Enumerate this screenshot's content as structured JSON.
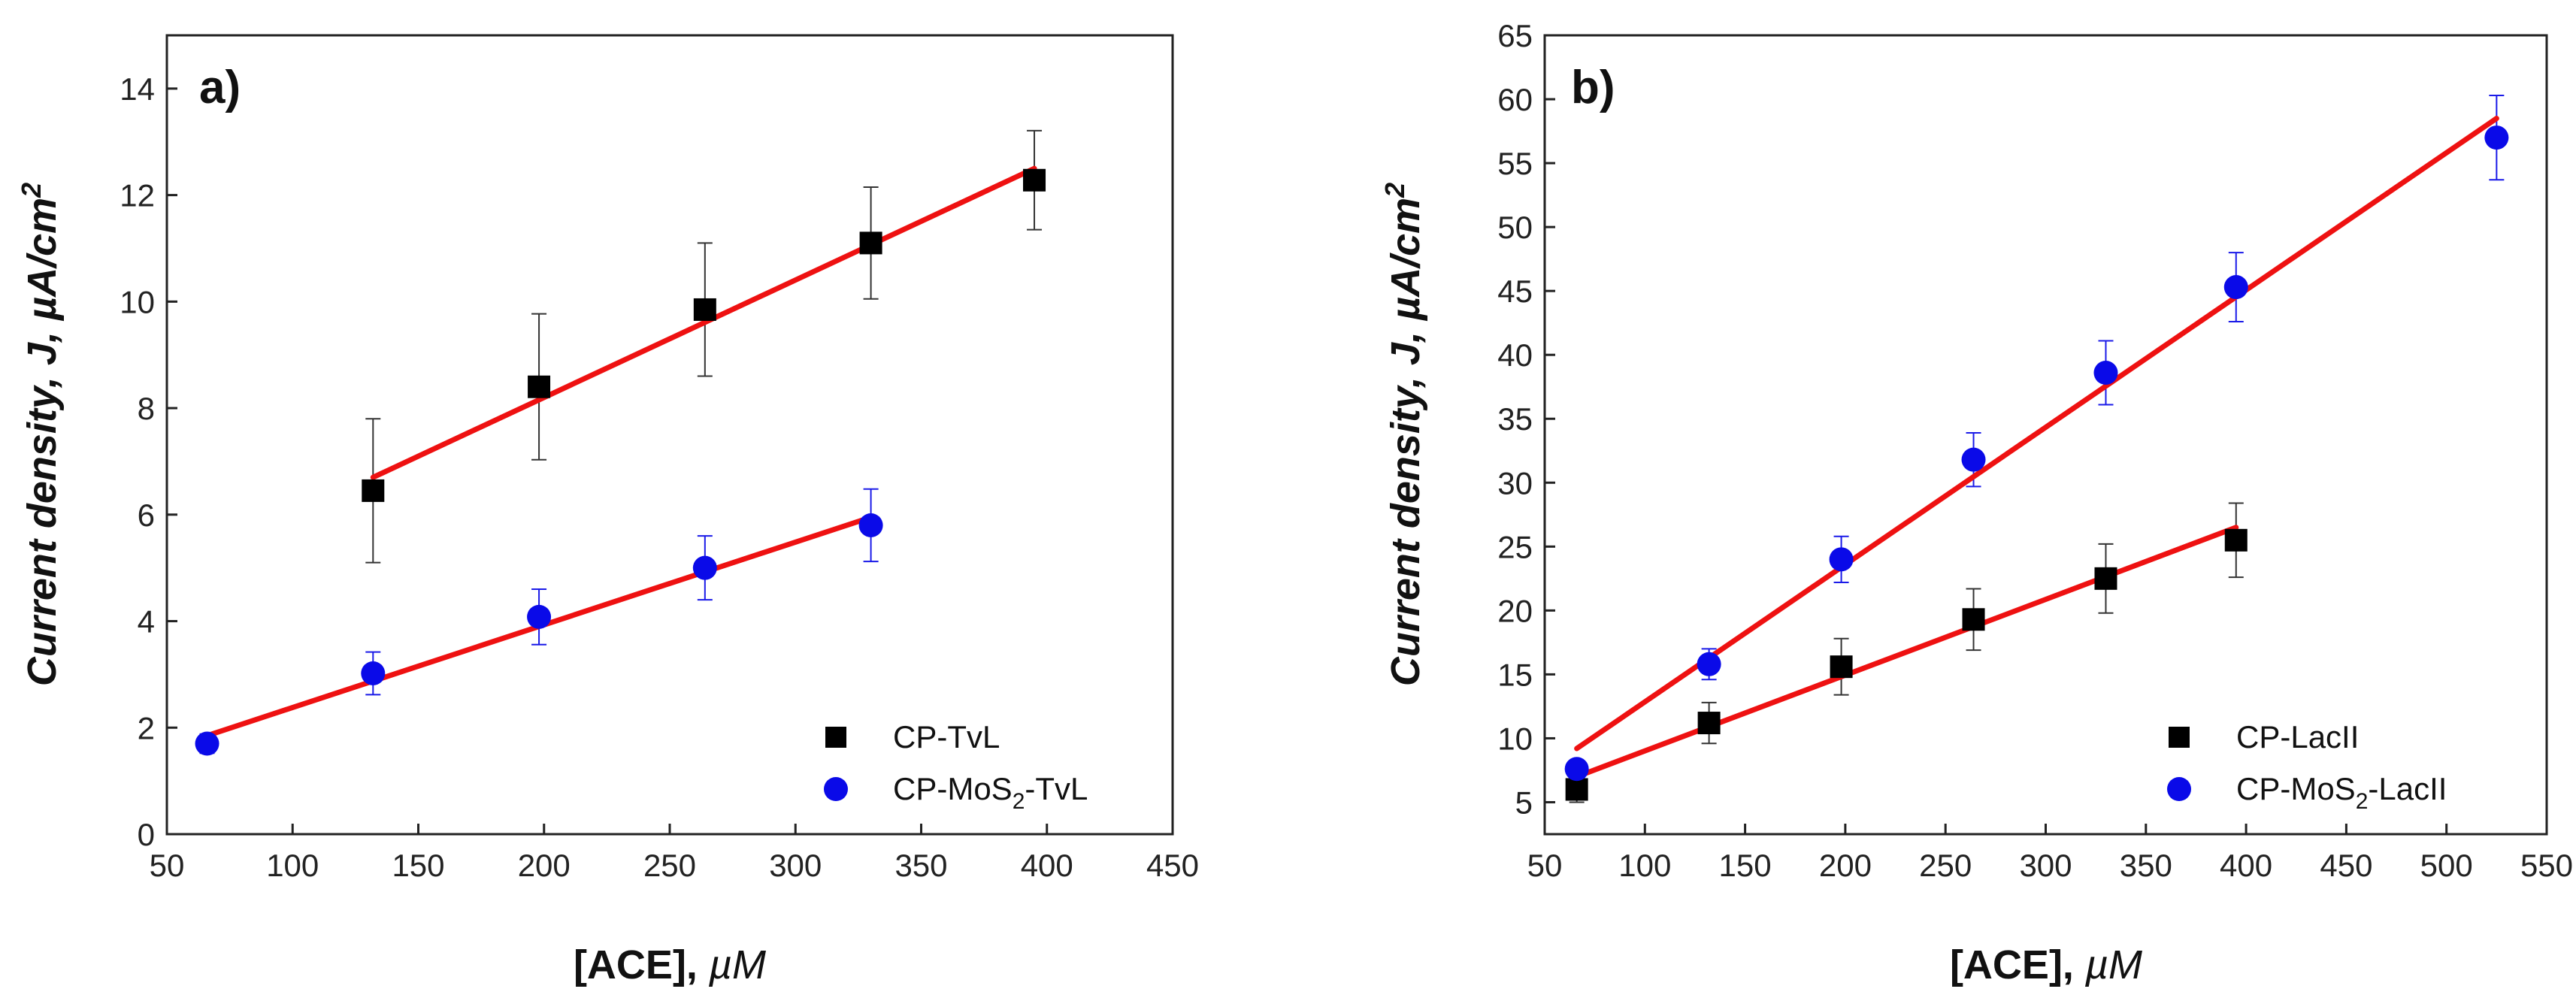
{
  "chart_data": [
    {
      "type": "scatter",
      "panel_label": "a)",
      "xlabel_main": "[ACE], ",
      "xlabel_unit": "µM",
      "ylabel_main": "Current density, J, ",
      "ylabel_unit": "µA/cm",
      "ylabel_sup": "2",
      "xlim": [
        50,
        450
      ],
      "ylim": [
        0,
        15
      ],
      "xticks": [
        50,
        100,
        150,
        200,
        250,
        300,
        350,
        400,
        450
      ],
      "yticks": [
        0,
        2,
        4,
        6,
        8,
        10,
        12,
        14
      ],
      "legend_position": "bottom-right",
      "series": [
        {
          "name_main": "CP-TvL",
          "name_sub": "",
          "name_tail": "",
          "marker": "square",
          "color": "#000000",
          "err_color": "#333333",
          "x": [
            132,
            198,
            264,
            330,
            395
          ],
          "y": [
            6.45,
            8.4,
            9.85,
            11.1,
            12.28
          ],
          "err": [
            1.35,
            1.37,
            1.25,
            1.05,
            0.93
          ],
          "fit": {
            "x": [
              132,
              395
            ],
            "y": [
              6.7,
              12.5
            ],
            "color": "#ee1111"
          }
        },
        {
          "name_main": "CP-MoS",
          "name_sub": "2",
          "name_tail": "-TvL",
          "marker": "circle",
          "color": "#0a0ae8",
          "err_color": "#1a1ae8",
          "x": [
            66,
            132,
            198,
            264,
            330
          ],
          "y": [
            1.7,
            3.02,
            4.08,
            5.0,
            5.8
          ],
          "err": [
            0.18,
            0.4,
            0.52,
            0.6,
            0.68
          ],
          "fit": {
            "x": [
              66,
              330
            ],
            "y": [
              1.85,
              5.95
            ],
            "color": "#ee1111"
          }
        }
      ]
    },
    {
      "type": "scatter",
      "panel_label": "b)",
      "xlabel_main": "[ACE], ",
      "xlabel_unit": "µM",
      "ylabel_main": "Current density, J, ",
      "ylabel_unit": "µA/cm",
      "ylabel_sup": "2",
      "xlim": [
        50,
        550
      ],
      "ylim": [
        2.5,
        65
      ],
      "xticks": [
        50,
        100,
        150,
        200,
        250,
        300,
        350,
        400,
        450,
        500,
        550
      ],
      "yticks": [
        5,
        10,
        15,
        20,
        25,
        30,
        35,
        40,
        45,
        50,
        55,
        60,
        65
      ],
      "legend_position": "bottom-right",
      "series": [
        {
          "name_main": "CP-LacII",
          "name_sub": "",
          "name_tail": "",
          "marker": "square",
          "color": "#000000",
          "err_color": "#333333",
          "x": [
            66,
            132,
            198,
            264,
            330,
            395
          ],
          "y": [
            6.0,
            11.2,
            15.6,
            19.3,
            22.5,
            25.5
          ],
          "err": [
            1.0,
            1.6,
            2.2,
            2.4,
            2.7,
            2.9
          ],
          "fit": {
            "x": [
              66,
              395
            ],
            "y": [
              7.0,
              26.5
            ],
            "color": "#ee1111"
          }
        },
        {
          "name_main": "CP-MoS",
          "name_sub": "2",
          "name_tail": "-LacII",
          "marker": "circle",
          "color": "#0a0ae8",
          "err_color": "#1a1ae8",
          "x": [
            66,
            132,
            198,
            264,
            330,
            395,
            525
          ],
          "y": [
            7.6,
            15.8,
            24.0,
            31.8,
            38.6,
            45.3,
            57.0
          ],
          "err": [
            0.6,
            1.2,
            1.8,
            2.1,
            2.5,
            2.7,
            3.3
          ],
          "fit": {
            "x": [
              66,
              525
            ],
            "y": [
              9.2,
              58.5
            ],
            "color": "#ee1111"
          }
        }
      ]
    }
  ]
}
